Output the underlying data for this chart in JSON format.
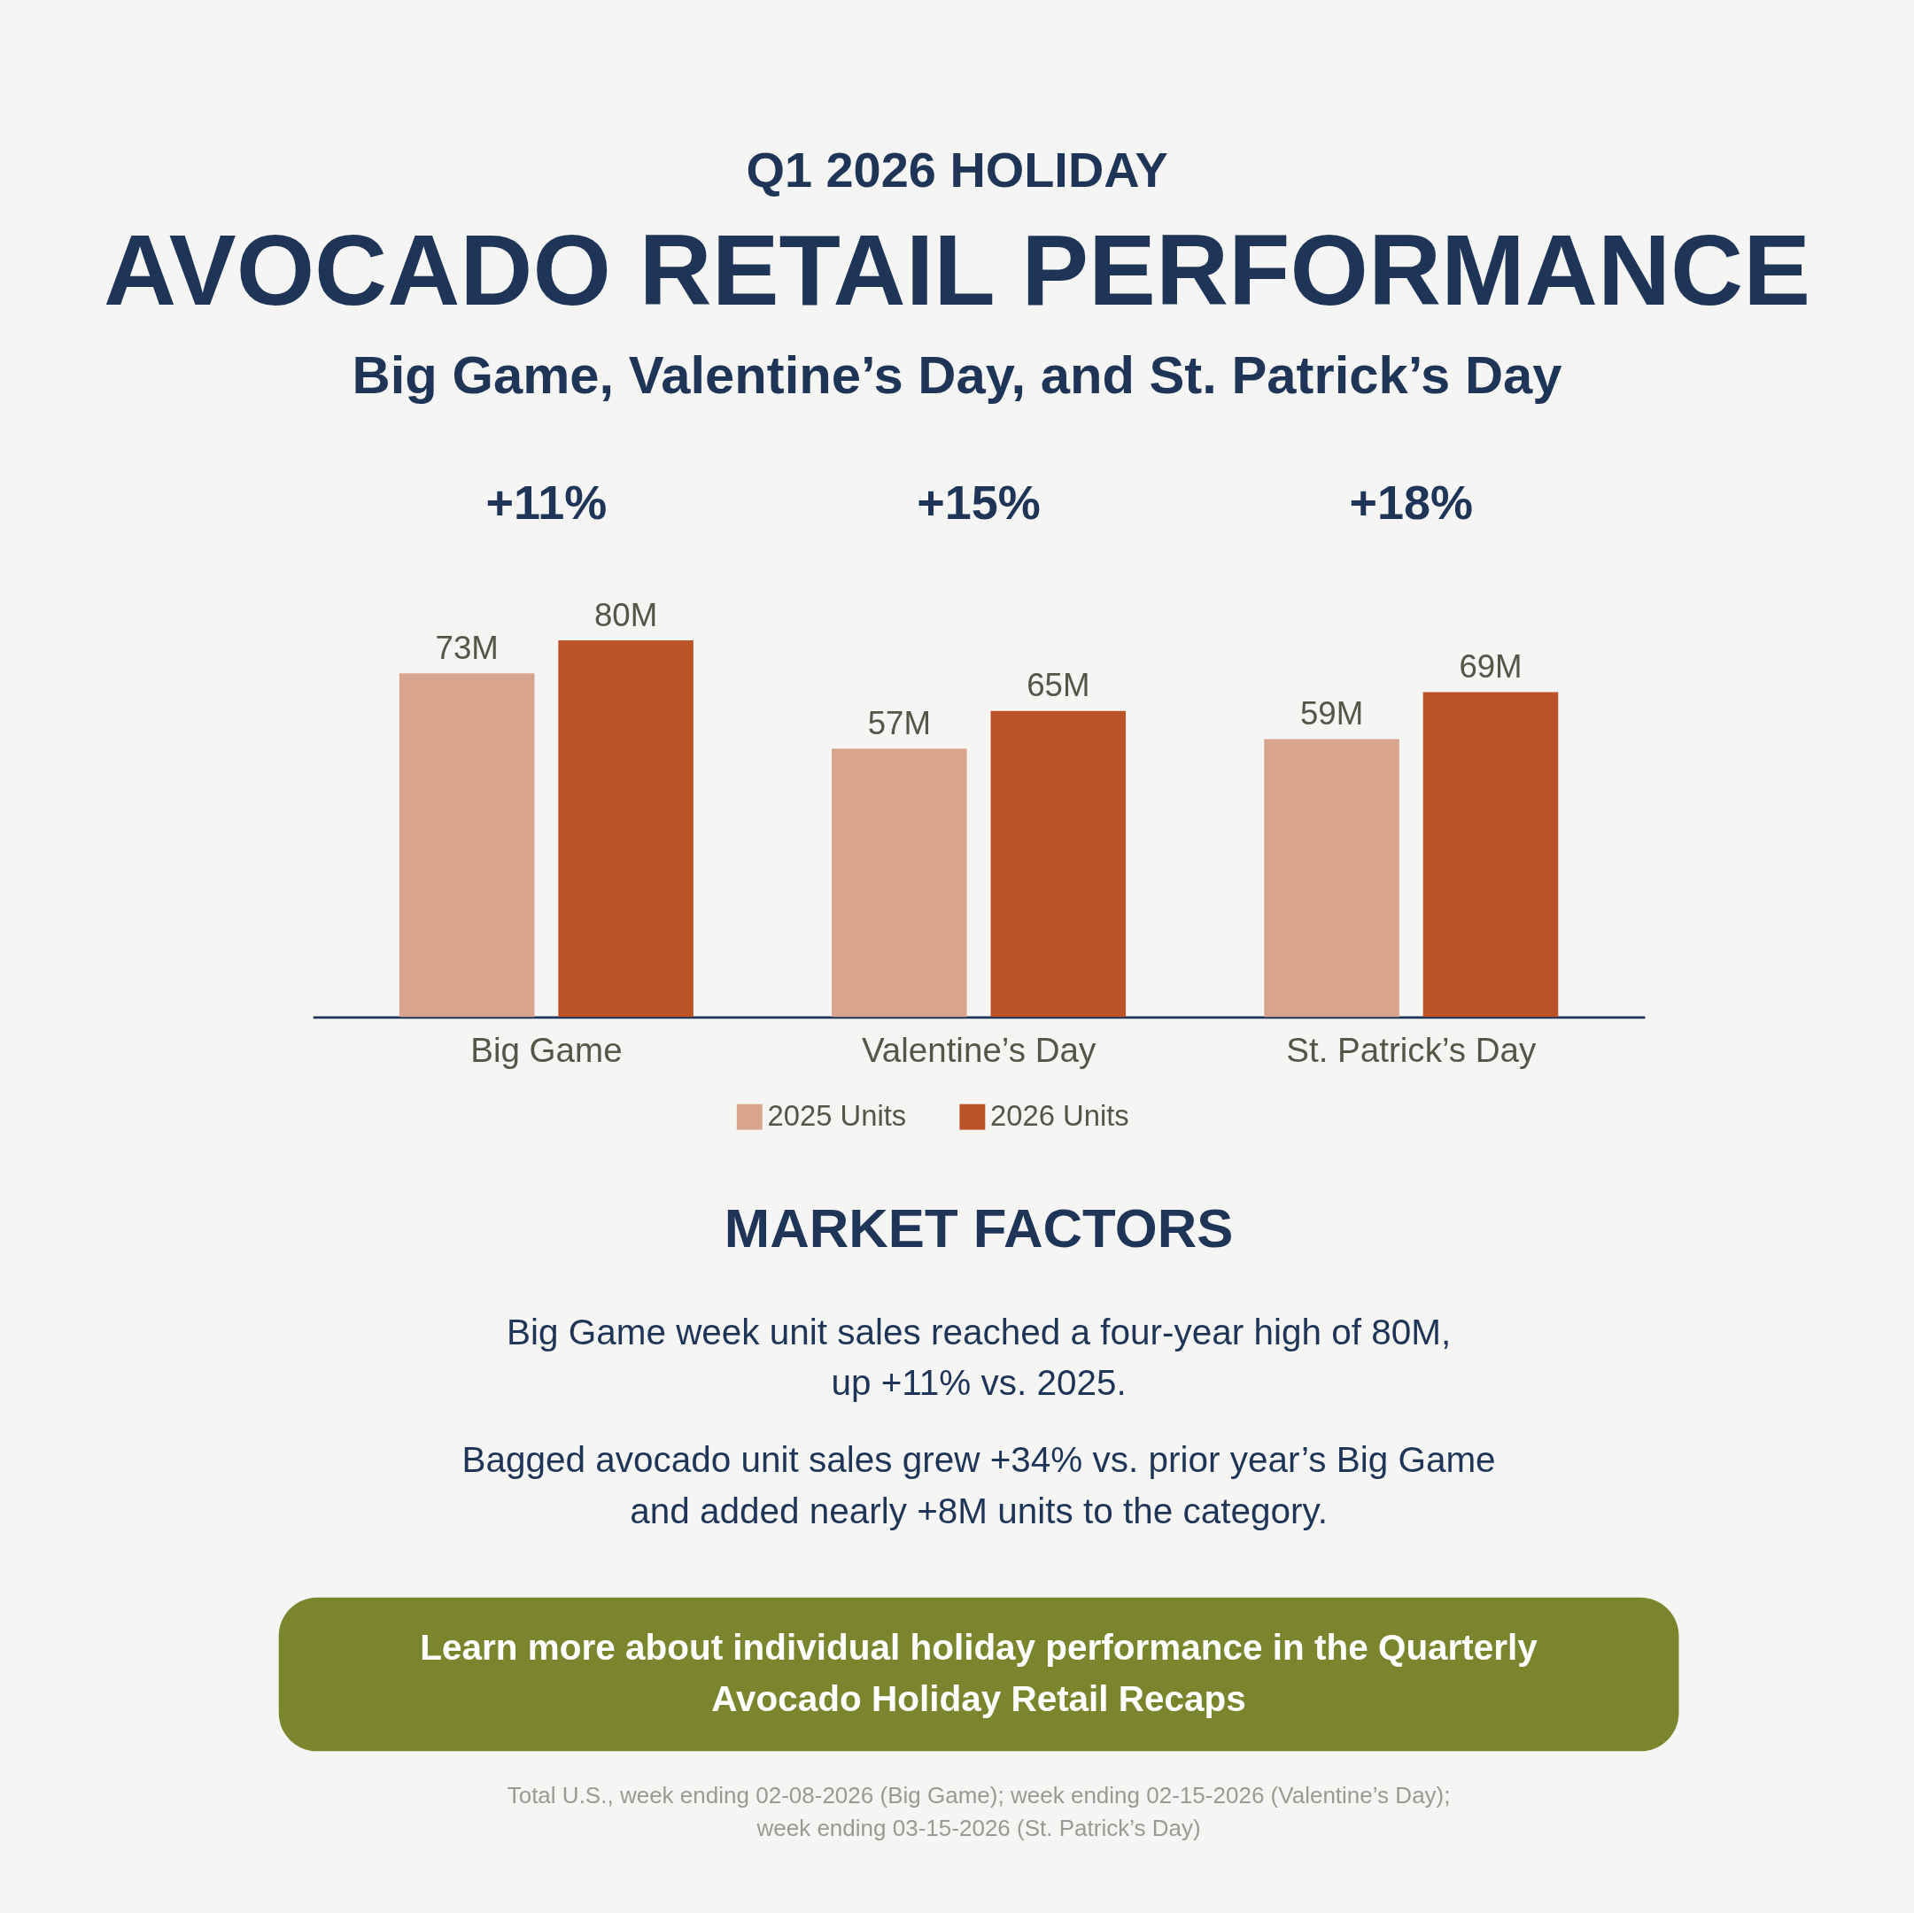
{
  "chart_data": {
    "type": "bar",
    "title": "AVOCADO RETAIL PERFORMANCE",
    "subtitle": "Big Game, Valentine’s Day, and St. Patrick’s Day",
    "categories": [
      "Big Game",
      "Valentine’s Day",
      "St. Patrick’s Day"
    ],
    "series": [
      {
        "name": "2025 Units",
        "color": "#d8a48e",
        "values": [
          73,
          57,
          59
        ],
        "value_labels": [
          "73M",
          "57M",
          "59M"
        ]
      },
      {
        "name": "2026 Units",
        "color": "#bc5227",
        "values": [
          80,
          65,
          69
        ],
        "value_labels": [
          "80M",
          "65M",
          "69M"
        ]
      }
    ],
    "legend": "bottom",
    "grid": false,
    "annotations": [
      "Q1 2026 HOLIDAY",
      "+11%",
      "+15%",
      "+18%",
      "MARKET FACTORS",
      "Big Game week unit sales reached a four-year high of 80M,\nup +11% vs. 2025.",
      "Bagged avocado unit sales grew +34% vs. prior year’s Big Game\nand added nearly +8M units to the category.",
      "Learn more about individual holiday performance in the Quarterly\nAvocado Holiday Retail Recaps",
      "Total U.S., week ending 02-08-2026 (Big Game); week ending 02-15-2026 (Valentine’s Day);\nweek ending 03-15-2026 (St. Patrick’s Day)"
    ]
  }
}
